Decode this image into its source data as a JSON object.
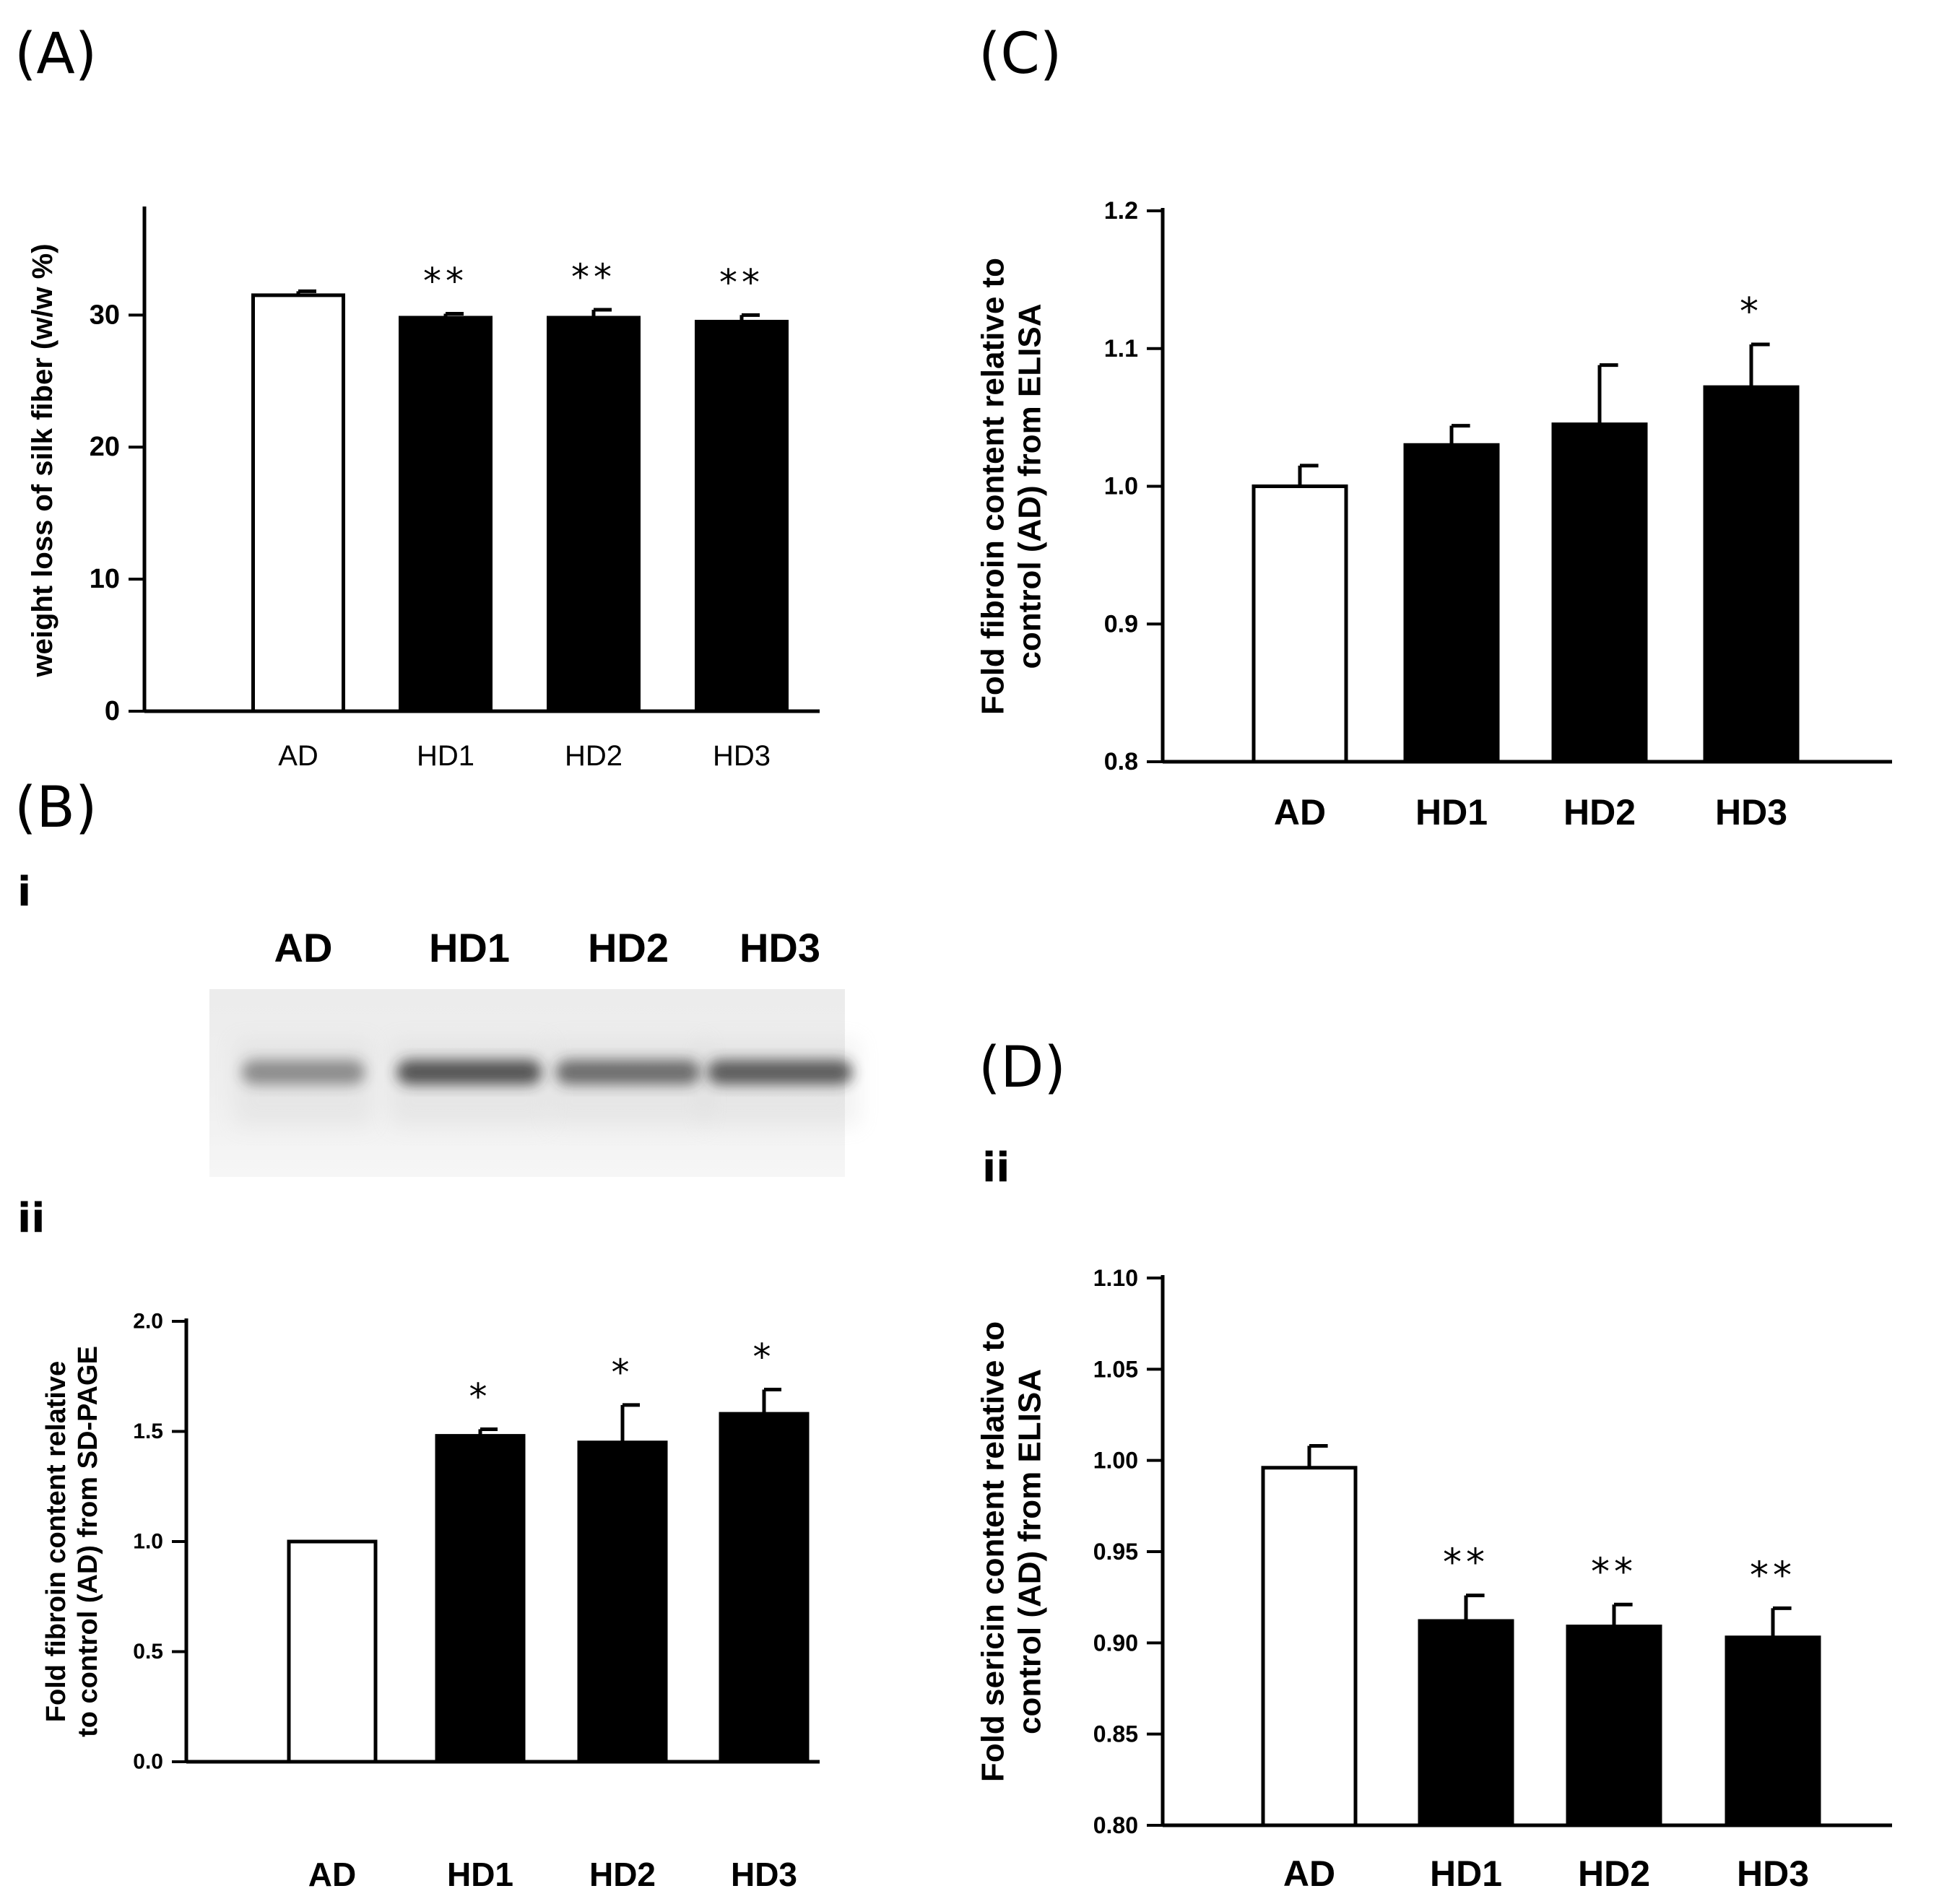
{
  "panels": {
    "a": {
      "label": "(A)"
    },
    "b": {
      "label": "(B)",
      "sub_i": "i",
      "sub_ii": "ii"
    },
    "c": {
      "label": "(C)"
    },
    "d": {
      "label": "(D)",
      "sub_ii": "ii"
    }
  },
  "gel": {
    "lane_labels": [
      "AD",
      "HD1",
      "HD2",
      "HD3"
    ],
    "band_intensity": [
      0.55,
      0.9,
      0.75,
      0.85
    ]
  },
  "colors": {
    "control_fill": "#ffffff",
    "treatment_fill": "#000000",
    "axis": "#000000",
    "gel_band": "#2a2a2a"
  },
  "chart_data": [
    {
      "id": "A",
      "type": "bar",
      "title": "",
      "categories": [
        "AD",
        "HD1",
        "HD2",
        "HD3"
      ],
      "values": [
        31.5,
        29.8,
        29.8,
        29.5
      ],
      "errors": [
        0.3,
        0.3,
        0.6,
        0.5
      ],
      "significance": [
        "",
        "**",
        "**",
        "**"
      ],
      "xlabel": "",
      "ylabel": "weight loss of silk fiber (w/w %)",
      "ylim": [
        0,
        38
      ],
      "yticks": [
        0,
        10,
        20,
        30
      ],
      "ytick_labels": [
        "0",
        "10",
        "20",
        "30"
      ],
      "grid": false
    },
    {
      "id": "B-ii",
      "type": "bar",
      "title": "",
      "categories": [
        "AD",
        "HD1",
        "HD2",
        "HD3"
      ],
      "values": [
        1.0,
        1.48,
        1.45,
        1.58
      ],
      "errors": [
        0.0,
        0.03,
        0.17,
        0.11
      ],
      "significance": [
        "",
        "*",
        "*",
        "*"
      ],
      "xlabel": "",
      "ylabel_lines": [
        "Fold fibroin content relative",
        "to control (AD) from SD-PAGE"
      ],
      "ylim": [
        0.0,
        2.0
      ],
      "yticks": [
        0.0,
        0.5,
        1.0,
        1.5,
        2.0
      ],
      "ytick_labels": [
        "0.0",
        "0.5",
        "1.0",
        "1.5",
        "2.0"
      ],
      "grid": false
    },
    {
      "id": "C",
      "type": "bar",
      "title": "",
      "categories": [
        "AD",
        "HD1",
        "HD2",
        "HD3"
      ],
      "values": [
        1.0,
        1.03,
        1.045,
        1.072
      ],
      "errors": [
        0.015,
        0.014,
        0.043,
        0.031
      ],
      "significance": [
        "",
        "",
        "",
        "*"
      ],
      "xlabel": "",
      "ylabel_lines": [
        "Fold fibroin content relative to",
        "control (AD) from ELISA"
      ],
      "ylim": [
        0.8,
        1.2
      ],
      "yticks": [
        0.8,
        0.9,
        1.0,
        1.1,
        1.2
      ],
      "ytick_labels": [
        "0.8",
        "0.9",
        "1.0",
        "1.1",
        "1.2"
      ],
      "grid": false
    },
    {
      "id": "D",
      "type": "bar",
      "title": "",
      "categories": [
        "AD",
        "HD1",
        "HD2",
        "HD3"
      ],
      "values": [
        0.996,
        0.912,
        0.909,
        0.903
      ],
      "errors": [
        0.012,
        0.014,
        0.012,
        0.016
      ],
      "significance": [
        "",
        "**",
        "**",
        "**"
      ],
      "xlabel": "",
      "ylabel_lines": [
        "Fold sericin content relative to",
        "control (AD) from ELISA"
      ],
      "ylim": [
        0.8,
        1.1
      ],
      "yticks": [
        0.8,
        0.85,
        0.9,
        0.95,
        1.0,
        1.05,
        1.1
      ],
      "ytick_labels": [
        "0.80",
        "0.85",
        "0.90",
        "0.95",
        "1.00",
        "1.05",
        "1.10"
      ],
      "grid": false
    }
  ]
}
